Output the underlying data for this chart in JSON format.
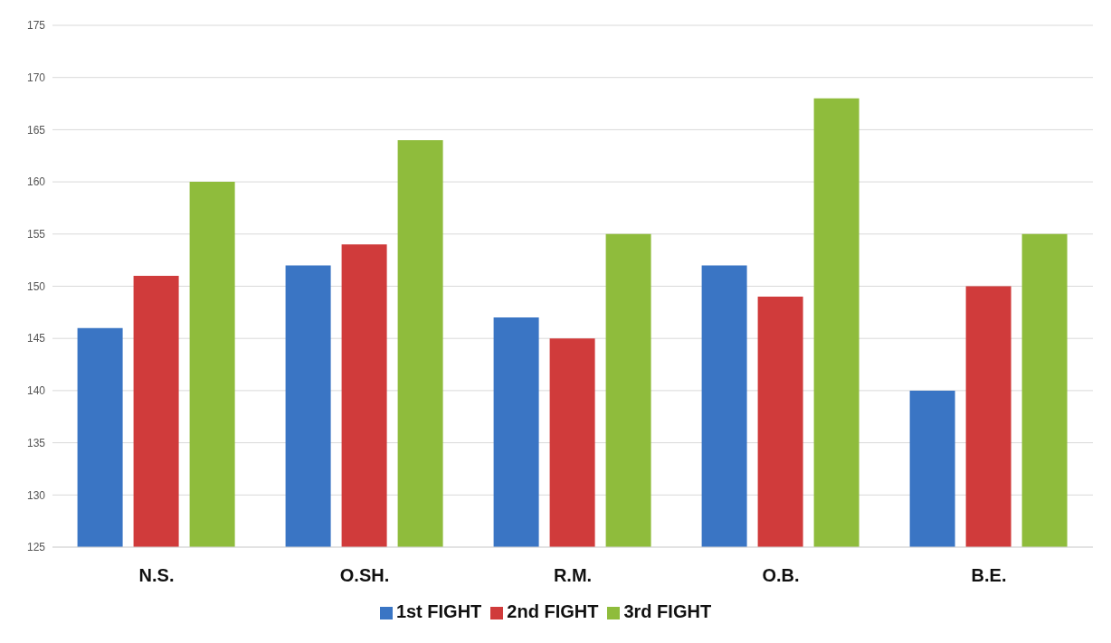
{
  "chart_data": {
    "type": "bar",
    "categories": [
      "N.S.",
      "O.SH.",
      "R.M.",
      "O.B.",
      "B.E."
    ],
    "series": [
      {
        "name": "1st FIGHT",
        "color": "#3a75c4",
        "values": [
          146,
          152,
          147,
          152,
          140
        ]
      },
      {
        "name": "2nd FIGHT",
        "color": "#d03b3b",
        "values": [
          151,
          154,
          145,
          149,
          150
        ]
      },
      {
        "name": "3rd FIGHT",
        "color": "#8fbc3c",
        "values": [
          160,
          164,
          155,
          168,
          155
        ]
      }
    ],
    "ylim": [
      125,
      175
    ],
    "yticks": [
      125,
      130,
      135,
      140,
      145,
      150,
      155,
      160,
      165,
      170,
      175
    ],
    "grid": "y",
    "legend": "bottom"
  }
}
